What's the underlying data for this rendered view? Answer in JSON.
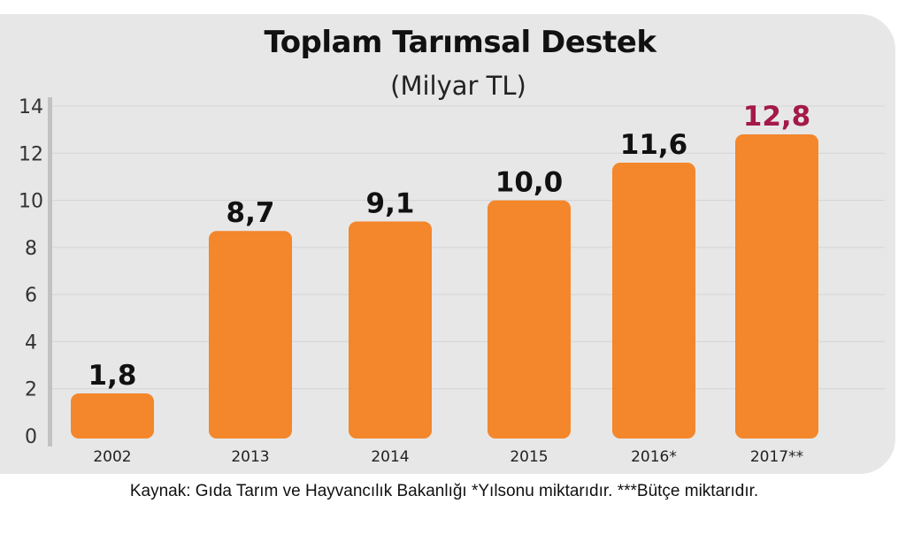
{
  "chart_data": {
    "type": "bar",
    "title": "Toplam Tarımsal Destek",
    "subtitle": "(Milyar TL)",
    "categories": [
      "2002",
      "2013",
      "2014",
      "2015",
      "2016*",
      "2017**"
    ],
    "values": [
      1.8,
      8.7,
      9.1,
      10.0,
      11.6,
      12.8
    ],
    "value_labels": [
      "1,8",
      "8,7",
      "9,1",
      "10,0",
      "11,6",
      "12,8"
    ],
    "yticks": [
      "0",
      "2",
      "4",
      "6",
      "8",
      "10",
      "12",
      "14"
    ],
    "ylim": [
      0,
      14
    ],
    "grid": true,
    "bar_color": "#f4862b",
    "label_color": "#111111",
    "highlight_label_color": "#a4194a",
    "highlight_index": 5
  },
  "footer": "Kaynak: Gıda Tarım ve Hayvancılık Bakanlığı *Yılsonu miktarıdır. ***Bütçe miktarıdır."
}
